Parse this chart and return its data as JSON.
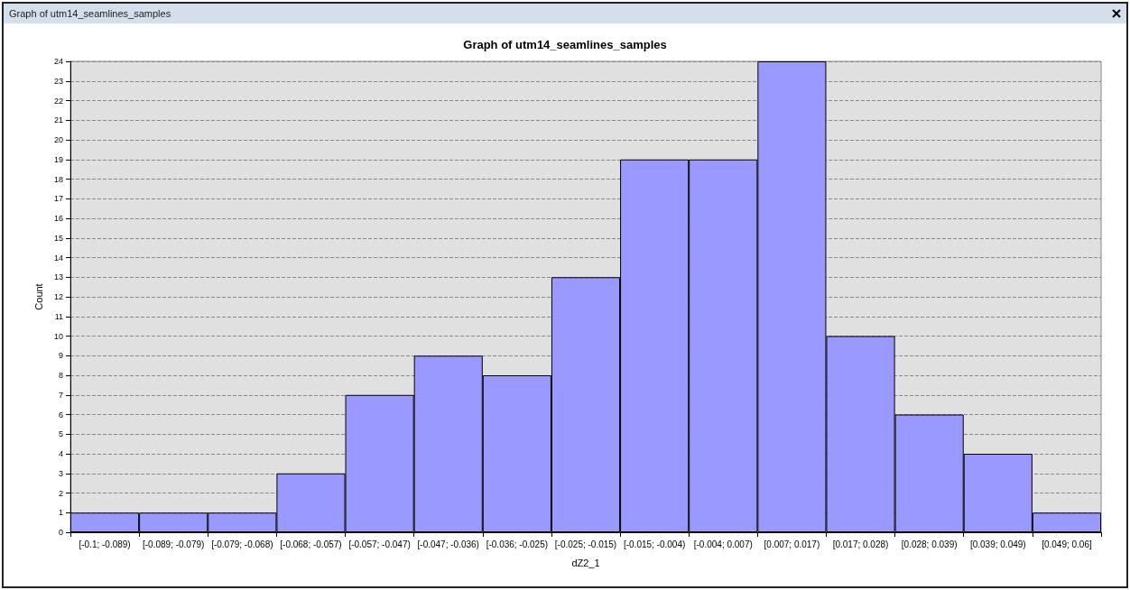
{
  "chart_data": {
    "type": "bar",
    "title": "Graph of utm14_seamlines_samples",
    "xlabel": "dZ2_1",
    "ylabel": "Count",
    "annotations": [
      "Graph of utm14_seamlines_samples"
    ],
    "categories": [
      "[-0.1; -0.089)",
      "[-0.089; -0.079)",
      "[-0.079; -0.068)",
      "[-0.068; -0.057)",
      "[-0.057; -0.047)",
      "[-0.047; -0.036)",
      "[-0.036; -0.025)",
      "[-0.025; -0.015)",
      "[-0.015; -0.004)",
      "[-0.004; 0.007)",
      "[0.007; 0.017)",
      "[0.017; 0.028)",
      "[0.028; 0.039)",
      "[0.039; 0.049)",
      "[0.049; 0.06]"
    ],
    "values": [
      1,
      1,
      1,
      3,
      7,
      9,
      8,
      13,
      19,
      19,
      24,
      10,
      6,
      4,
      1
    ],
    "color": "#9999ff",
    "ylim": [
      0,
      24
    ],
    "yticks": [
      0,
      1,
      2,
      3,
      4,
      5,
      6,
      7,
      8,
      9,
      10,
      11,
      12,
      13,
      14,
      15,
      16,
      17,
      18,
      19,
      20,
      21,
      22,
      23,
      24
    ],
    "grid": "y"
  }
}
